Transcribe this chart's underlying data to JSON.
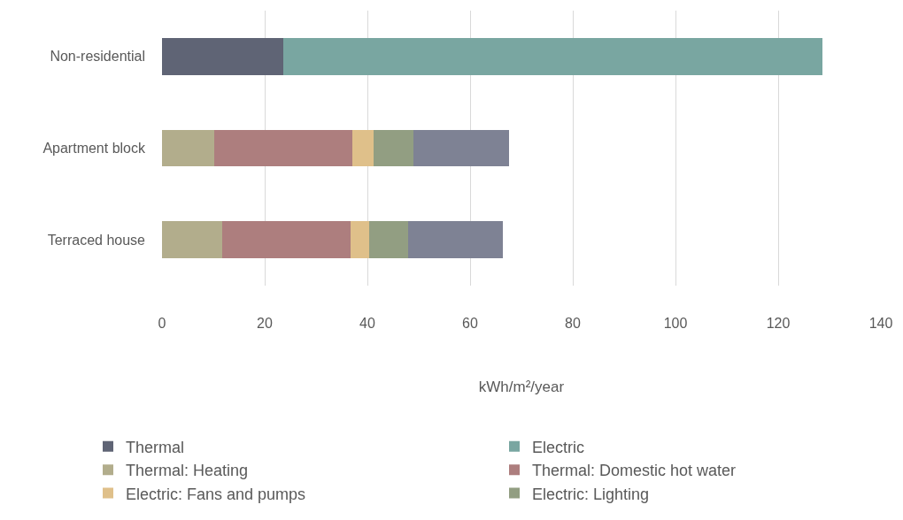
{
  "chart_data": {
    "type": "bar",
    "orientation": "horizontal",
    "stacked": true,
    "categories": [
      "Non-residential",
      "Apartment block",
      "Terraced house"
    ],
    "series": [
      {
        "name": "Thermal",
        "color": "#5f6475",
        "values": [
          23.7,
          null,
          null
        ]
      },
      {
        "name": "Electric",
        "color": "#79a6a1",
        "values": [
          104.9,
          null,
          null
        ]
      },
      {
        "name": "Thermal: Heating",
        "color": "#b2ad8c",
        "values": [
          null,
          10.2,
          11.8
        ]
      },
      {
        "name": "Thermal: Domestic hot water",
        "color": "#ad7e7e",
        "values": [
          null,
          26.9,
          24.9
        ]
      },
      {
        "name": "Electric: Fans and pumps",
        "color": "#dfc08a",
        "values": [
          null,
          4.1,
          3.6
        ]
      },
      {
        "name": "Electric: Lighting",
        "color": "#929e82",
        "values": [
          null,
          7.7,
          7.6
        ]
      },
      {
        "color": "#7e8294",
        "values": [
          null,
          18.7,
          18.5
        ]
      }
    ],
    "xlabel": "kWh/m²/year",
    "xlim": [
      0,
      140
    ],
    "xticks": [
      0,
      20,
      40,
      60,
      80,
      100,
      120,
      140
    ],
    "grid": "x",
    "legend": "bottom"
  }
}
